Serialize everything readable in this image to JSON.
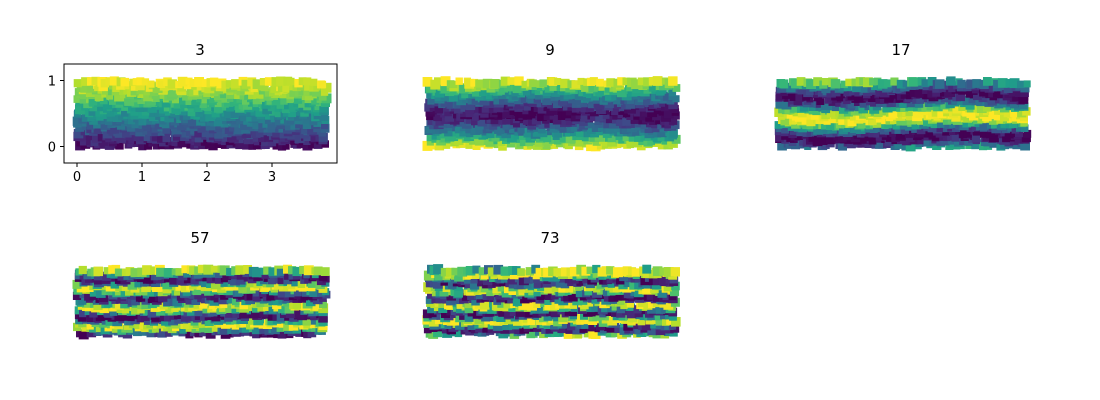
{
  "chart_data": [
    {
      "type": "scatter",
      "title": "3",
      "axes_visible": true,
      "xlim": [
        -0.2,
        4.0
      ],
      "ylim": [
        -0.25,
        1.25
      ],
      "xticks": [
        "0",
        "1",
        "2",
        "3"
      ],
      "yticks": [
        "0",
        "1"
      ],
      "x_range": [
        0,
        3.85
      ],
      "y_range": [
        0,
        1
      ],
      "pattern": "gradient",
      "frequency": 1.0,
      "phase": 0,
      "colormap": "viridis"
    },
    {
      "type": "scatter",
      "title": "9",
      "axes_visible": false,
      "x_range": [
        0,
        3.85
      ],
      "y_range": [
        0,
        1
      ],
      "pattern": "symmetric",
      "frequency": 1.0,
      "phase": 0,
      "colormap": "viridis"
    },
    {
      "type": "scatter",
      "title": "17",
      "axes_visible": false,
      "x_range": [
        0,
        3.85
      ],
      "y_range": [
        0,
        1
      ],
      "pattern": "bands",
      "frequency": 1.6,
      "phase": 0.25,
      "colormap": "viridis"
    },
    {
      "type": "scatter",
      "title": "57",
      "axes_visible": false,
      "x_range": [
        0,
        3.85
      ],
      "y_range": [
        0,
        1
      ],
      "pattern": "bands",
      "frequency": 3.5,
      "phase": 0.5,
      "colormap": "viridis"
    },
    {
      "type": "scatter",
      "title": "73",
      "axes_visible": false,
      "x_range": [
        0,
        3.85
      ],
      "y_range": [
        0,
        1
      ],
      "pattern": "bands",
      "frequency": 4.2,
      "phase": 0.1,
      "colormap": "viridis"
    }
  ]
}
